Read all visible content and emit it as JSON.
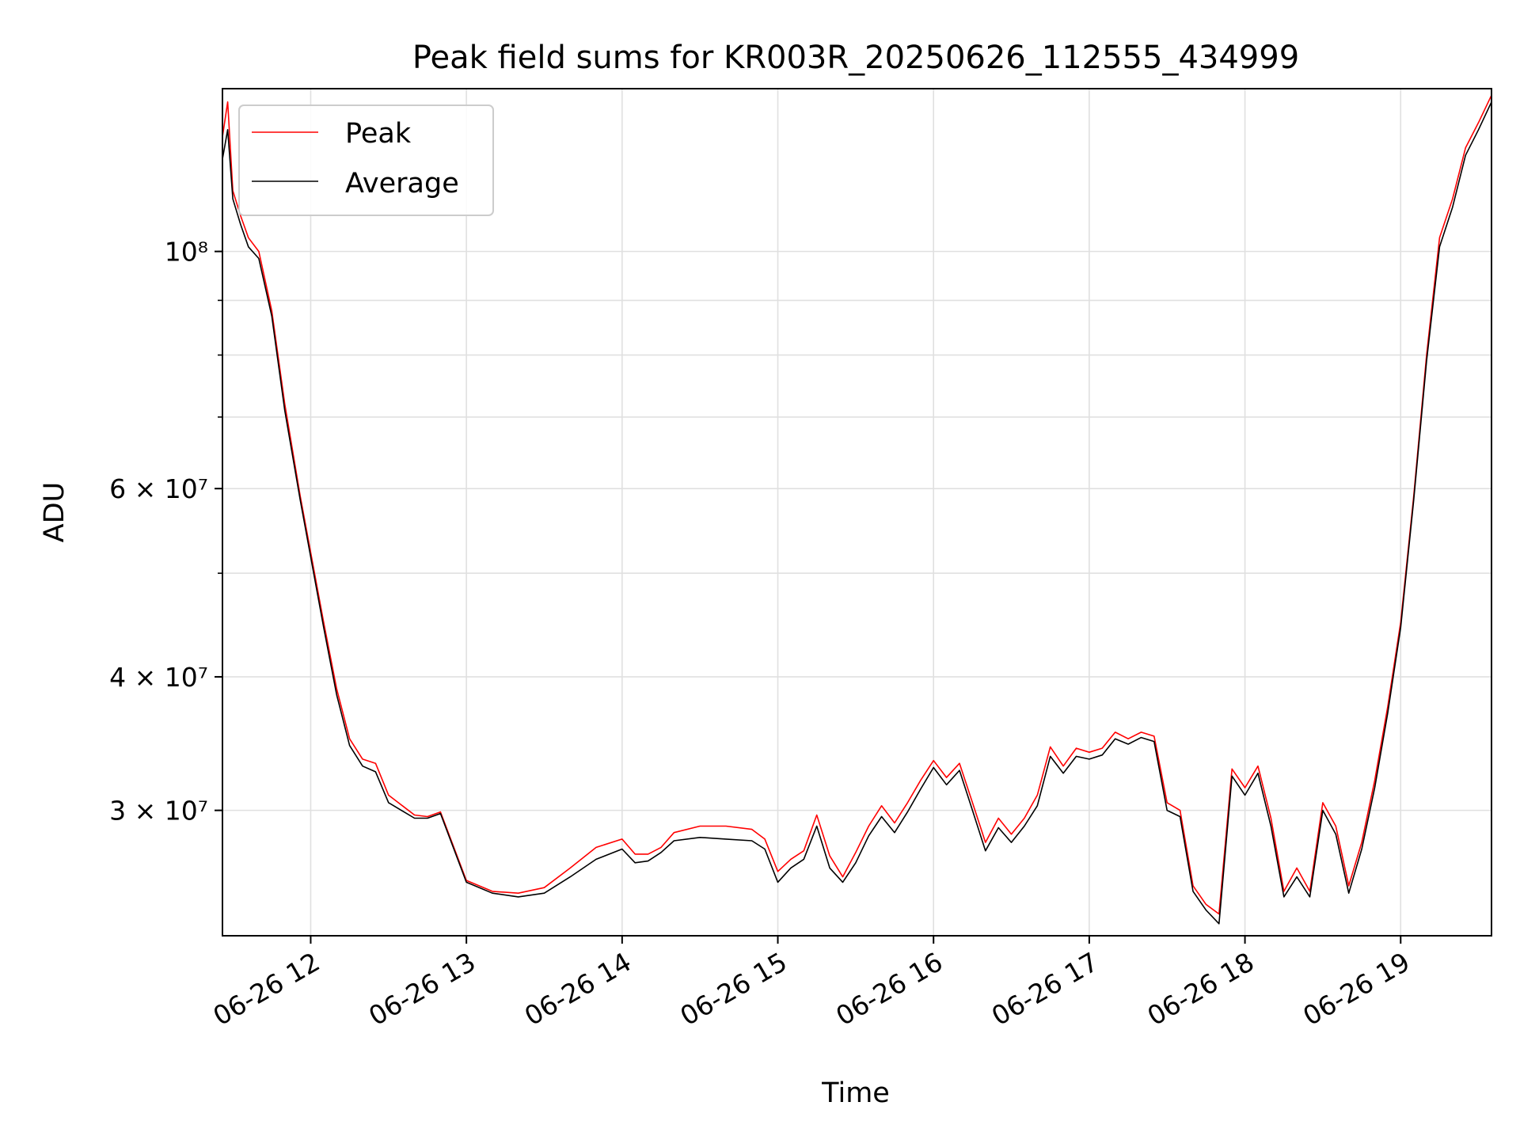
{
  "chart_data": {
    "type": "line",
    "title": "Peak field sums for KR003R_20250626_112555_434999",
    "xlabel": "Time",
    "ylabel": "ADU",
    "y_scale": "log",
    "x_range": [
      "06-26 11:26",
      "06-26 19:35"
    ],
    "ylim": [
      22900000,
      142000000
    ],
    "grid": true,
    "legend_position": "top-left",
    "x_tick_labels": [
      "06-26 12",
      "06-26 13",
      "06-26 14",
      "06-26 15",
      "06-26 16",
      "06-26 17",
      "06-26 18",
      "06-26 19"
    ],
    "y_tick_labels": [
      {
        "text": "3 × 10⁷",
        "value": 30000000
      },
      {
        "text": "4 × 10⁷",
        "value": 40000000
      },
      {
        "text": "6 × 10⁷",
        "value": 60000000
      },
      {
        "text": "10⁸",
        "value": 100000000
      }
    ],
    "colors": {
      "peak": "#ff0000",
      "average": "#000000"
    },
    "series": [
      {
        "name": "Peak",
        "color": "#ff0000",
        "x": [
          "06-26 11:26",
          "06-26 11:28",
          "06-26 11:30",
          "06-26 11:33",
          "06-26 11:36",
          "06-26 11:40",
          "06-26 11:45",
          "06-26 11:50",
          "06-26 11:56",
          "06-26 12:05",
          "06-26 12:10",
          "06-26 12:15",
          "06-26 12:20",
          "06-26 12:25",
          "06-26 12:30",
          "06-26 12:40",
          "06-26 12:45",
          "06-26 12:50",
          "06-26 13:00",
          "06-26 13:10",
          "06-26 13:20",
          "06-26 13:30",
          "06-26 13:40",
          "06-26 13:50",
          "06-26 14:00",
          "06-26 14:05",
          "06-26 14:10",
          "06-26 14:15",
          "06-26 14:20",
          "06-26 14:30",
          "06-26 14:40",
          "06-26 14:50",
          "06-26 14:55",
          "06-26 15:00",
          "06-26 15:05",
          "06-26 15:10",
          "06-26 15:15",
          "06-26 15:20",
          "06-26 15:25",
          "06-26 15:30",
          "06-26 15:35",
          "06-26 15:40",
          "06-26 15:45",
          "06-26 15:50",
          "06-26 15:55",
          "06-26 16:00",
          "06-26 16:05",
          "06-26 16:10",
          "06-26 16:15",
          "06-26 16:20",
          "06-26 16:25",
          "06-26 16:30",
          "06-26 16:35",
          "06-26 16:40",
          "06-26 16:45",
          "06-26 16:50",
          "06-26 16:55",
          "06-26 17:00",
          "06-26 17:05",
          "06-26 17:10",
          "06-26 17:15",
          "06-26 17:20",
          "06-26 17:25",
          "06-26 17:30",
          "06-26 17:35",
          "06-26 17:40",
          "06-26 17:45",
          "06-26 17:50",
          "06-26 17:55",
          "06-26 18:00",
          "06-26 18:05",
          "06-26 18:10",
          "06-26 18:15",
          "06-26 18:20",
          "06-26 18:25",
          "06-26 18:30",
          "06-26 18:35",
          "06-26 18:40",
          "06-26 18:45",
          "06-26 18:50",
          "06-26 18:55",
          "06-26 19:00",
          "06-26 19:05",
          "06-26 19:10",
          "06-26 19:15",
          "06-26 19:20",
          "06-26 19:25",
          "06-26 19:30",
          "06-26 19:35"
        ],
        "y": [
          128000000,
          138000000,
          114000000,
          108000000,
          103000000,
          100000000,
          88000000,
          72000000,
          59000000,
          45000000,
          39000000,
          35000000,
          33500000,
          33200000,
          31000000,
          29700000,
          29600000,
          29900000,
          25800000,
          25200000,
          25100000,
          25400000,
          26500000,
          27700000,
          28200000,
          27300000,
          27300000,
          27700000,
          28600000,
          29000000,
          29000000,
          28800000,
          28200000,
          26300000,
          27000000,
          27500000,
          29700000,
          27200000,
          26000000,
          27400000,
          29000000,
          30300000,
          29200000,
          30500000,
          32000000,
          33400000,
          32200000,
          33200000,
          30500000,
          28000000,
          29500000,
          28500000,
          29500000,
          31000000,
          34400000,
          33000000,
          34300000,
          34000000,
          34300000,
          35500000,
          35000000,
          35500000,
          35200000,
          30500000,
          30000000,
          25500000,
          24500000,
          24000000,
          32800000,
          31500000,
          33000000,
          29500000,
          25200000,
          26500000,
          25200000,
          30500000,
          29000000,
          25500000,
          28000000,
          32000000,
          37500000,
          45000000,
          59000000,
          80000000,
          103000000,
          112000000,
          125000000,
          132000000,
          140000000
        ]
      },
      {
        "name": "Average",
        "color": "#000000",
        "x": [
          "06-26 11:26",
          "06-26 11:28",
          "06-26 11:30",
          "06-26 11:33",
          "06-26 11:36",
          "06-26 11:40",
          "06-26 11:45",
          "06-26 11:50",
          "06-26 11:56",
          "06-26 12:05",
          "06-26 12:10",
          "06-26 12:15",
          "06-26 12:20",
          "06-26 12:25",
          "06-26 12:30",
          "06-26 12:40",
          "06-26 12:45",
          "06-26 12:50",
          "06-26 13:00",
          "06-26 13:10",
          "06-26 13:20",
          "06-26 13:30",
          "06-26 13:40",
          "06-26 13:50",
          "06-26 14:00",
          "06-26 14:05",
          "06-26 14:10",
          "06-26 14:15",
          "06-26 14:20",
          "06-26 14:30",
          "06-26 14:40",
          "06-26 14:50",
          "06-26 14:55",
          "06-26 15:00",
          "06-26 15:05",
          "06-26 15:10",
          "06-26 15:15",
          "06-26 15:20",
          "06-26 15:25",
          "06-26 15:30",
          "06-26 15:35",
          "06-26 15:40",
          "06-26 15:45",
          "06-26 15:50",
          "06-26 15:55",
          "06-26 16:00",
          "06-26 16:05",
          "06-26 16:10",
          "06-26 16:15",
          "06-26 16:20",
          "06-26 16:25",
          "06-26 16:30",
          "06-26 16:35",
          "06-26 16:40",
          "06-26 16:45",
          "06-26 16:50",
          "06-26 16:55",
          "06-26 17:00",
          "06-26 17:05",
          "06-26 17:10",
          "06-26 17:15",
          "06-26 17:20",
          "06-26 17:25",
          "06-26 17:30",
          "06-26 17:35",
          "06-26 17:40",
          "06-26 17:45",
          "06-26 17:50",
          "06-26 17:55",
          "06-26 18:00",
          "06-26 18:05",
          "06-26 18:10",
          "06-26 18:15",
          "06-26 18:20",
          "06-26 18:25",
          "06-26 18:30",
          "06-26 18:35",
          "06-26 18:40",
          "06-26 18:45",
          "06-26 18:50",
          "06-26 18:55",
          "06-26 19:00",
          "06-26 19:05",
          "06-26 19:10",
          "06-26 19:15",
          "06-26 19:20",
          "06-26 19:25",
          "06-26 19:30",
          "06-26 19:35"
        ],
        "y": [
          122000000,
          130000000,
          112000000,
          106000000,
          101000000,
          98500000,
          87000000,
          71000000,
          58500000,
          44500000,
          38500000,
          34500000,
          33000000,
          32600000,
          30500000,
          29500000,
          29500000,
          29800000,
          25700000,
          25100000,
          24900000,
          25100000,
          26000000,
          27000000,
          27600000,
          26800000,
          26900000,
          27400000,
          28100000,
          28300000,
          28200000,
          28100000,
          27600000,
          25700000,
          26500000,
          27000000,
          29000000,
          26500000,
          25700000,
          26800000,
          28400000,
          29600000,
          28600000,
          29900000,
          31400000,
          32900000,
          31700000,
          32700000,
          30000000,
          27500000,
          28900000,
          28000000,
          29000000,
          30300000,
          33700000,
          32500000,
          33700000,
          33500000,
          33800000,
          35000000,
          34600000,
          35100000,
          34800000,
          30000000,
          29600000,
          25200000,
          24200000,
          23500000,
          32300000,
          31000000,
          32500000,
          29000000,
          24900000,
          26000000,
          24900000,
          30000000,
          28500000,
          25100000,
          27600000,
          31500000,
          37000000,
          44500000,
          58500000,
          79000000,
          101000000,
          110000000,
          123000000,
          130000000,
          138000000
        ]
      }
    ]
  }
}
